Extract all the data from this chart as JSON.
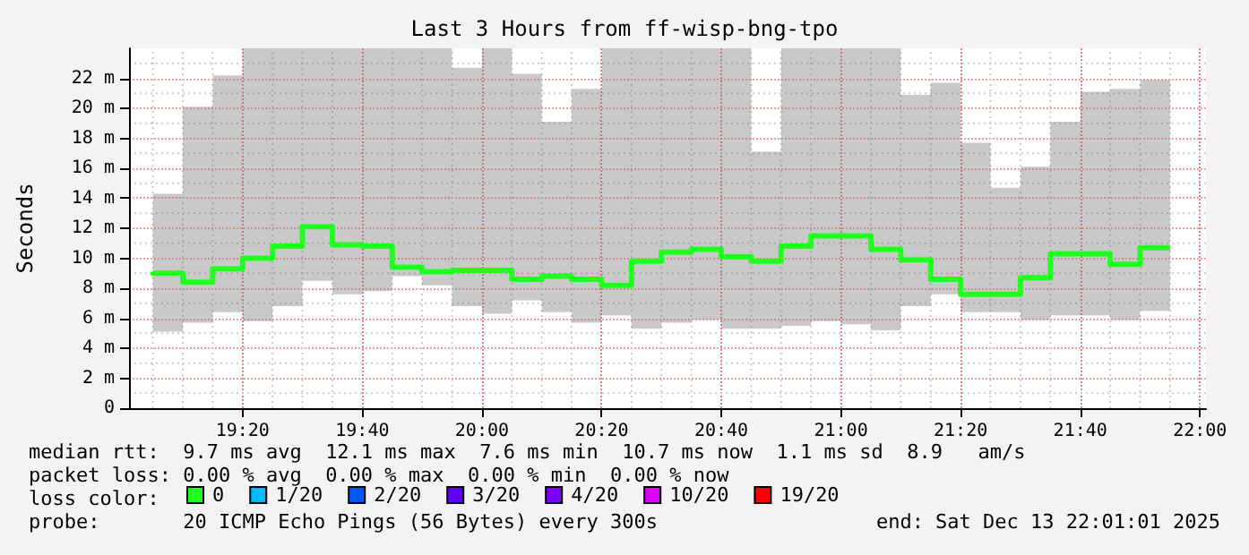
{
  "chart_data": {
    "type": "step",
    "title": "Last 3 Hours from ff-wisp-bng-tpo",
    "ylabel": "Seconds",
    "legend_title": "loss color:",
    "x": [
      19.0833,
      19.1667,
      19.25,
      19.3333,
      19.4167,
      19.5,
      19.5833,
      19.6667,
      19.75,
      19.8333,
      19.9167,
      20.0,
      20.0833,
      20.1667,
      20.25,
      20.3333,
      20.4167,
      20.5,
      20.5833,
      20.6667,
      20.75,
      20.8333,
      20.9167,
      21.0,
      21.0833,
      21.1667,
      21.25,
      21.3333,
      21.4167,
      21.5,
      21.5833,
      21.6667,
      21.75,
      21.8333,
      21.9167
    ],
    "series": [
      {
        "name": "0",
        "color": "#20ff20",
        "values": [
          9.1,
          9.0,
          8.4,
          9.3,
          10.0,
          10.8,
          12.1,
          10.9,
          10.8,
          9.4,
          9.1,
          9.2,
          9.2,
          8.6,
          8.8,
          8.6,
          8.2,
          9.8,
          10.4,
          10.6,
          10.1,
          9.8,
          10.8,
          11.5,
          11.5,
          10.6,
          9.9,
          8.6,
          7.6,
          7.6,
          8.7,
          10.3,
          10.3,
          9.6,
          10.7
        ],
        "lower": [
          5.2,
          5.1,
          5.7,
          6.4,
          5.8,
          6.8,
          8.5,
          7.6,
          7.8,
          8.8,
          8.2,
          6.8,
          6.3,
          7.2,
          6.4,
          5.7,
          6.2,
          5.3,
          5.7,
          5.9,
          5.3,
          5.3,
          5.5,
          5.8,
          5.6,
          5.2,
          6.8,
          7.6,
          6.4,
          6.4,
          5.9,
          6.2,
          6.2,
          5.9,
          6.5
        ],
        "upper": [
          24,
          14.3,
          20.1,
          22.2,
          24,
          24,
          24,
          24,
          24,
          24,
          24,
          22.7,
          24,
          22.3,
          19.1,
          21.3,
          24,
          24,
          24,
          24,
          24,
          17.1,
          24,
          24,
          24,
          24,
          20.9,
          21.7,
          17.7,
          14.7,
          16.1,
          19.1,
          21.1,
          21.3,
          21.9
        ]
      },
      {
        "name": "1/20",
        "color": "#00b8ff",
        "values": [
          null,
          null,
          null,
          null,
          null,
          null,
          null,
          null,
          null,
          null,
          null,
          null,
          null,
          null,
          null,
          null,
          null,
          null,
          null,
          null,
          null,
          null,
          null,
          null,
          null,
          null,
          null,
          null,
          null,
          null,
          null,
          null,
          null,
          null,
          null
        ]
      },
      {
        "name": "2/20",
        "color": "#0059ff",
        "values": [
          null,
          null,
          null,
          null,
          null,
          null,
          null,
          null,
          null,
          null,
          null,
          null,
          null,
          null,
          null,
          null,
          null,
          null,
          null,
          null,
          null,
          null,
          null,
          null,
          null,
          null,
          null,
          null,
          null,
          null,
          null,
          null,
          null,
          null,
          null
        ]
      },
      {
        "name": "3/20",
        "color": "#5e00ff",
        "values": [
          null,
          null,
          null,
          null,
          null,
          null,
          null,
          null,
          null,
          null,
          null,
          null,
          null,
          null,
          null,
          null,
          null,
          null,
          null,
          null,
          null,
          null,
          null,
          null,
          null,
          null,
          null,
          null,
          null,
          null,
          null,
          null,
          null,
          null,
          null
        ]
      },
      {
        "name": "4/20",
        "color": "#7e00ff",
        "values": [
          null,
          null,
          null,
          null,
          null,
          null,
          null,
          null,
          null,
          null,
          null,
          null,
          null,
          null,
          null,
          null,
          null,
          null,
          null,
          null,
          null,
          null,
          null,
          null,
          null,
          null,
          null,
          null,
          null,
          null,
          null,
          null,
          null,
          null,
          null
        ]
      },
      {
        "name": "10/20",
        "color": "#dd00ff",
        "values": [
          null,
          null,
          null,
          null,
          null,
          null,
          null,
          null,
          null,
          null,
          null,
          null,
          null,
          null,
          null,
          null,
          null,
          null,
          null,
          null,
          null,
          null,
          null,
          null,
          null,
          null,
          null,
          null,
          null,
          null,
          null,
          null,
          null,
          null,
          null
        ]
      },
      {
        "name": "19/20",
        "color": "#ff0000",
        "values": [
          null,
          null,
          null,
          null,
          null,
          null,
          null,
          null,
          null,
          null,
          null,
          null,
          null,
          null,
          null,
          null,
          null,
          null,
          null,
          null,
          null,
          null,
          null,
          null,
          null,
          null,
          null,
          null,
          null,
          null,
          null,
          null,
          null,
          null,
          null
        ]
      }
    ],
    "xlim": [
      19.0169,
      22.0169
    ],
    "xticks": [
      {
        "value": 19.3333,
        "label": "19:20"
      },
      {
        "value": 19.6667,
        "label": "19:40"
      },
      {
        "value": 20,
        "label": "20:00"
      },
      {
        "value": 20.3333,
        "label": "20:20"
      },
      {
        "value": 20.6667,
        "label": "20:40"
      },
      {
        "value": 21,
        "label": "21:00"
      },
      {
        "value": 21.3333,
        "label": "21:20"
      },
      {
        "value": 21.6667,
        "label": "21:40"
      },
      {
        "value": 22,
        "label": "22:00"
      }
    ],
    "ylim": [
      0,
      24
    ],
    "yticks": [
      0,
      {
        "value": 2,
        "label": "2 m"
      },
      {
        "value": 4,
        "label": "4 m"
      },
      {
        "value": 6,
        "label": "6 m"
      },
      {
        "value": 8,
        "label": "8 m"
      },
      {
        "value": 10,
        "label": "10 m"
      },
      {
        "value": 12,
        "label": "12 m"
      },
      {
        "value": 14,
        "label": "14 m"
      },
      {
        "value": 16,
        "label": "16 m"
      },
      {
        "value": 18,
        "label": "18 m"
      },
      {
        "value": 20,
        "label": "20 m"
      },
      {
        "value": 22,
        "label": "22 m"
      }
    ],
    "grid": true,
    "legend": "bottom",
    "marker": "none",
    "line_style": "solid",
    "annotations": [
      "median rtt:  9.7 ms avg  12.1 ms max  7.6 ms min  10.7 ms now  1.1 ms sd  8.9   am/s",
      "packet loss: 0.00 % avg  0.00 % max  0.00 % min  0.00 % now",
      "probe:       20 ICMP Echo Pings (56 Bytes) every 300s",
      "end: Sat Dec 13 22:01:01 2025"
    ]
  }
}
